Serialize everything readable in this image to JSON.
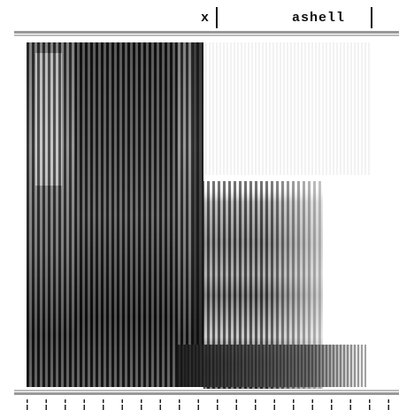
{
  "tier": {
    "segments": [
      "x",
      "ashell"
    ]
  }
}
